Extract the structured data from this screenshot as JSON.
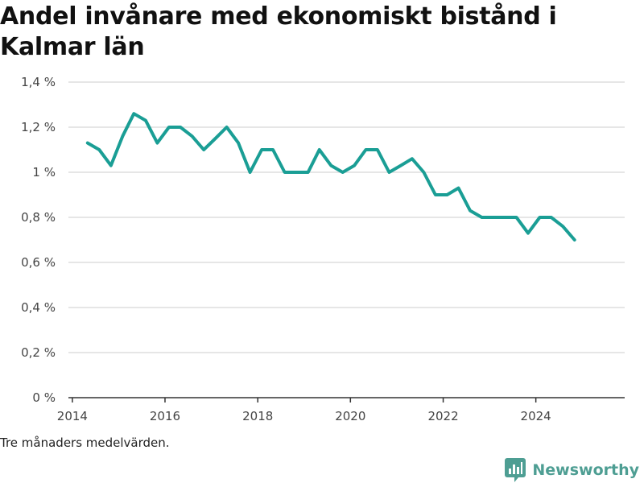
{
  "title": "Andel invånare med ekonomiskt bistånd i Kalmar län",
  "note": "Tre månaders medelvärden.",
  "brand": {
    "name": "Newsworthy",
    "icon": "bar-chart-speech-bubble-icon",
    "color": "#4e9e93"
  },
  "colors": {
    "line": "#1a9e95",
    "grid": "#dddddd",
    "axis": "#333333"
  },
  "chart_data": {
    "type": "line",
    "x_type": "date",
    "xlim": [
      "2013-12-01",
      "2025-12-01"
    ],
    "ylim": [
      0,
      1.4
    ],
    "x_ticks": [
      {
        "value": "2014-01-01",
        "label": "2014"
      },
      {
        "value": "2016-01-01",
        "label": "2016"
      },
      {
        "value": "2018-01-01",
        "label": "2018"
      },
      {
        "value": "2020-01-01",
        "label": "2020"
      },
      {
        "value": "2022-01-01",
        "label": "2022"
      },
      {
        "value": "2024-01-01",
        "label": "2024"
      }
    ],
    "y_ticks": [
      {
        "value": 0,
        "label": "0 %"
      },
      {
        "value": 0.2,
        "label": "0,2 %"
      },
      {
        "value": 0.4,
        "label": "0,4 %"
      },
      {
        "value": 0.6,
        "label": "0,6 %"
      },
      {
        "value": 0.8,
        "label": "0,8 %"
      },
      {
        "value": 1.0,
        "label": "1 %"
      },
      {
        "value": 1.2,
        "label": "1,2 %"
      },
      {
        "value": 1.4,
        "label": "1,4 %"
      }
    ],
    "grid": true,
    "x": [
      "2014-05-01",
      "2014-08-01",
      "2014-11-01",
      "2015-02-01",
      "2015-05-01",
      "2015-08-01",
      "2015-11-01",
      "2016-02-01",
      "2016-05-01",
      "2016-08-01",
      "2016-11-01",
      "2017-02-01",
      "2017-05-01",
      "2017-08-01",
      "2017-11-01",
      "2018-02-01",
      "2018-05-01",
      "2018-08-01",
      "2018-11-01",
      "2019-02-01",
      "2019-05-01",
      "2019-08-01",
      "2019-11-01",
      "2020-02-01",
      "2020-05-01",
      "2020-08-01",
      "2020-11-01",
      "2021-02-01",
      "2021-05-01",
      "2021-08-01",
      "2021-11-01",
      "2022-02-01",
      "2022-05-01",
      "2022-08-01",
      "2022-11-01",
      "2023-02-01",
      "2023-05-01",
      "2023-08-01",
      "2023-11-01",
      "2024-02-01",
      "2024-05-01",
      "2024-08-01",
      "2024-11-01"
    ],
    "series": [
      {
        "values": [
          1.13,
          1.1,
          1.03,
          1.16,
          1.26,
          1.23,
          1.13,
          1.2,
          1.2,
          1.16,
          1.1,
          1.15,
          1.2,
          1.13,
          1.0,
          1.1,
          1.1,
          1.0,
          1.0,
          1.0,
          1.1,
          1.03,
          1.0,
          1.03,
          1.1,
          1.1,
          1.0,
          1.03,
          1.06,
          1.0,
          0.9,
          0.9,
          0.93,
          0.83,
          0.8,
          0.8,
          0.8,
          0.8,
          0.73,
          0.8,
          0.8,
          0.76,
          0.7
        ]
      }
    ]
  }
}
